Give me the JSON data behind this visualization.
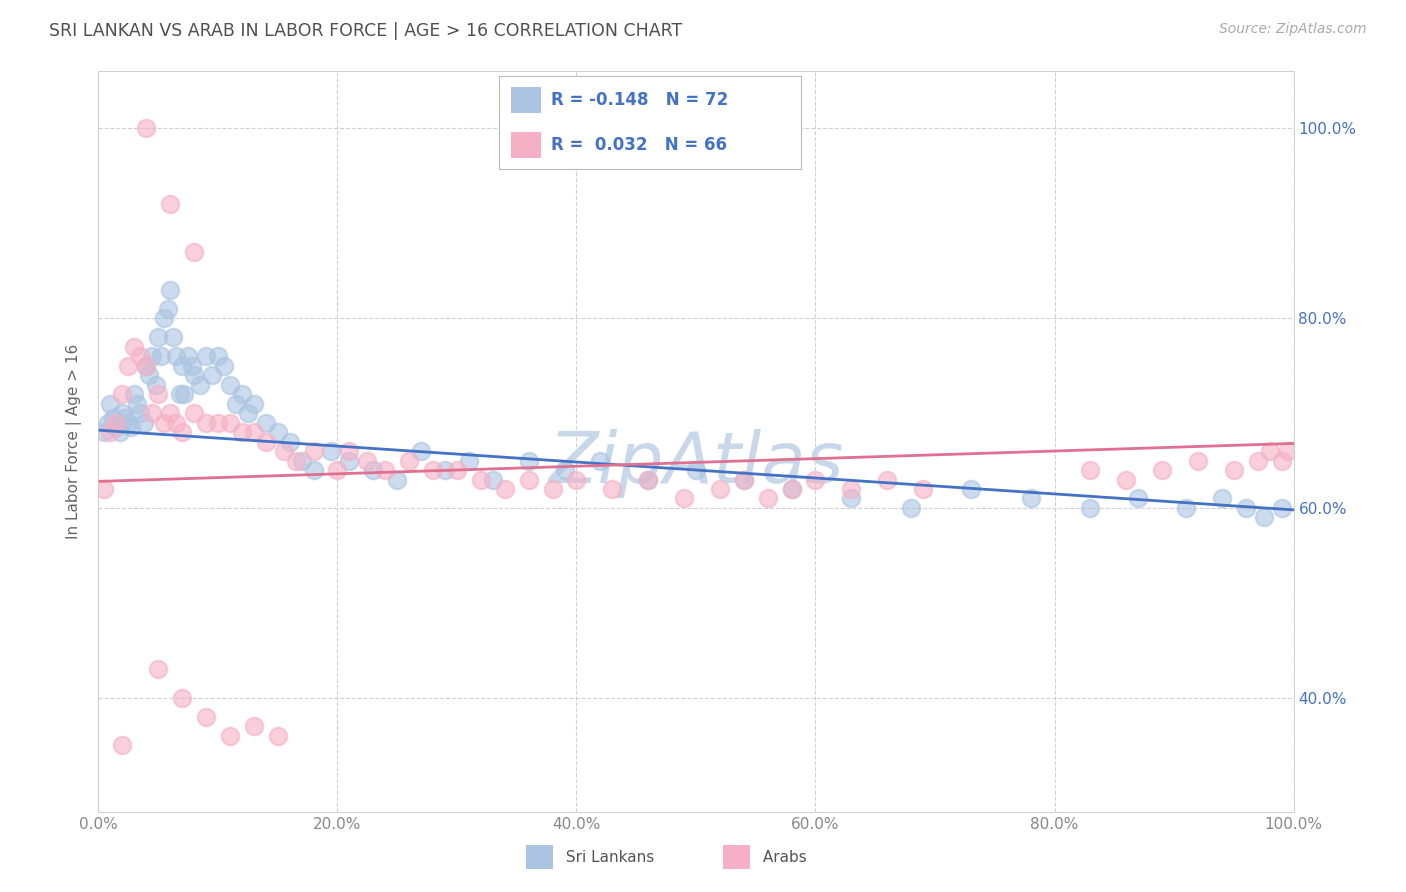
{
  "title": "SRI LANKAN VS ARAB IN LABOR FORCE | AGE > 16 CORRELATION CHART",
  "source": "Source: ZipAtlas.com",
  "ylabel": "In Labor Force | Age > 16",
  "xlim": [
    0.0,
    1.0
  ],
  "ylim": [
    0.28,
    1.06
  ],
  "xticks": [
    0.0,
    0.2,
    0.4,
    0.6,
    0.8,
    1.0
  ],
  "yticks": [
    0.4,
    0.6,
    0.8,
    1.0
  ],
  "ytick_labels": [
    "40.0%",
    "60.0%",
    "80.0%",
    "100.0%"
  ],
  "xtick_labels": [
    "0.0%",
    "20.0%",
    "40.0%",
    "60.0%",
    "80.0%",
    "100.0%"
  ],
  "sri_lankan_color": "#aac4e2",
  "arab_color": "#f5b0c5",
  "sri_lankan_line_color": "#4472c4",
  "arab_line_color": "#e07090",
  "sri_lankan_R": -0.148,
  "sri_lankan_N": 72,
  "arab_R": 0.032,
  "arab_N": 66,
  "bg_color": "#ffffff",
  "grid_color": "#cccccc",
  "title_color": "#505050",
  "tick_color": "#888888",
  "right_tick_color": "#4472c4",
  "watermark": "ZipAtlas",
  "watermark_color": "#c8d8ea",
  "sl_trendline_start_y": 0.682,
  "sl_trendline_end_y": 0.598,
  "ar_trendline_start_y": 0.628,
  "ar_trendline_end_y": 0.668,
  "sri_lankans_x": [
    0.005,
    0.008,
    0.01,
    0.012,
    0.015,
    0.018,
    0.02,
    0.022,
    0.025,
    0.027,
    0.03,
    0.032,
    0.035,
    0.038,
    0.04,
    0.042,
    0.045,
    0.048,
    0.05,
    0.052,
    0.055,
    0.058,
    0.06,
    0.062,
    0.065,
    0.068,
    0.07,
    0.072,
    0.075,
    0.078,
    0.08,
    0.085,
    0.09,
    0.095,
    0.1,
    0.105,
    0.11,
    0.115,
    0.12,
    0.125,
    0.13,
    0.14,
    0.15,
    0.16,
    0.17,
    0.18,
    0.195,
    0.21,
    0.23,
    0.25,
    0.27,
    0.29,
    0.31,
    0.33,
    0.36,
    0.39,
    0.42,
    0.46,
    0.5,
    0.54,
    0.58,
    0.63,
    0.68,
    0.73,
    0.78,
    0.83,
    0.87,
    0.91,
    0.94,
    0.96,
    0.975,
    0.99
  ],
  "sri_lankans_y": [
    0.68,
    0.69,
    0.71,
    0.695,
    0.685,
    0.68,
    0.7,
    0.695,
    0.69,
    0.685,
    0.72,
    0.71,
    0.7,
    0.69,
    0.75,
    0.74,
    0.76,
    0.73,
    0.78,
    0.76,
    0.8,
    0.81,
    0.83,
    0.78,
    0.76,
    0.72,
    0.75,
    0.72,
    0.76,
    0.75,
    0.74,
    0.73,
    0.76,
    0.74,
    0.76,
    0.75,
    0.73,
    0.71,
    0.72,
    0.7,
    0.71,
    0.69,
    0.68,
    0.67,
    0.65,
    0.64,
    0.66,
    0.65,
    0.64,
    0.63,
    0.66,
    0.64,
    0.65,
    0.63,
    0.65,
    0.64,
    0.65,
    0.63,
    0.64,
    0.63,
    0.62,
    0.61,
    0.6,
    0.62,
    0.61,
    0.6,
    0.61,
    0.6,
    0.61,
    0.6,
    0.59,
    0.6
  ],
  "arabs_x": [
    0.005,
    0.01,
    0.015,
    0.02,
    0.025,
    0.03,
    0.035,
    0.04,
    0.045,
    0.05,
    0.055,
    0.06,
    0.065,
    0.07,
    0.08,
    0.09,
    0.1,
    0.11,
    0.12,
    0.13,
    0.14,
    0.155,
    0.165,
    0.18,
    0.2,
    0.21,
    0.225,
    0.24,
    0.26,
    0.28,
    0.3,
    0.32,
    0.34,
    0.36,
    0.38,
    0.4,
    0.43,
    0.46,
    0.49,
    0.52,
    0.54,
    0.56,
    0.58,
    0.6,
    0.63,
    0.66,
    0.69,
    0.83,
    0.86,
    0.89,
    0.92,
    0.95,
    0.97,
    0.98,
    0.99,
    0.995,
    0.05,
    0.07,
    0.09,
    0.11,
    0.13,
    0.15,
    0.08,
    0.06,
    0.04,
    0.02
  ],
  "arabs_y": [
    0.62,
    0.68,
    0.69,
    0.72,
    0.75,
    0.77,
    0.76,
    0.75,
    0.7,
    0.72,
    0.69,
    0.7,
    0.69,
    0.68,
    0.7,
    0.69,
    0.69,
    0.69,
    0.68,
    0.68,
    0.67,
    0.66,
    0.65,
    0.66,
    0.64,
    0.66,
    0.65,
    0.64,
    0.65,
    0.64,
    0.64,
    0.63,
    0.62,
    0.63,
    0.62,
    0.63,
    0.62,
    0.63,
    0.61,
    0.62,
    0.63,
    0.61,
    0.62,
    0.63,
    0.62,
    0.63,
    0.62,
    0.64,
    0.63,
    0.64,
    0.65,
    0.64,
    0.65,
    0.66,
    0.65,
    0.66,
    0.43,
    0.4,
    0.38,
    0.36,
    0.37,
    0.36,
    0.87,
    0.92,
    1.0,
    0.35
  ]
}
